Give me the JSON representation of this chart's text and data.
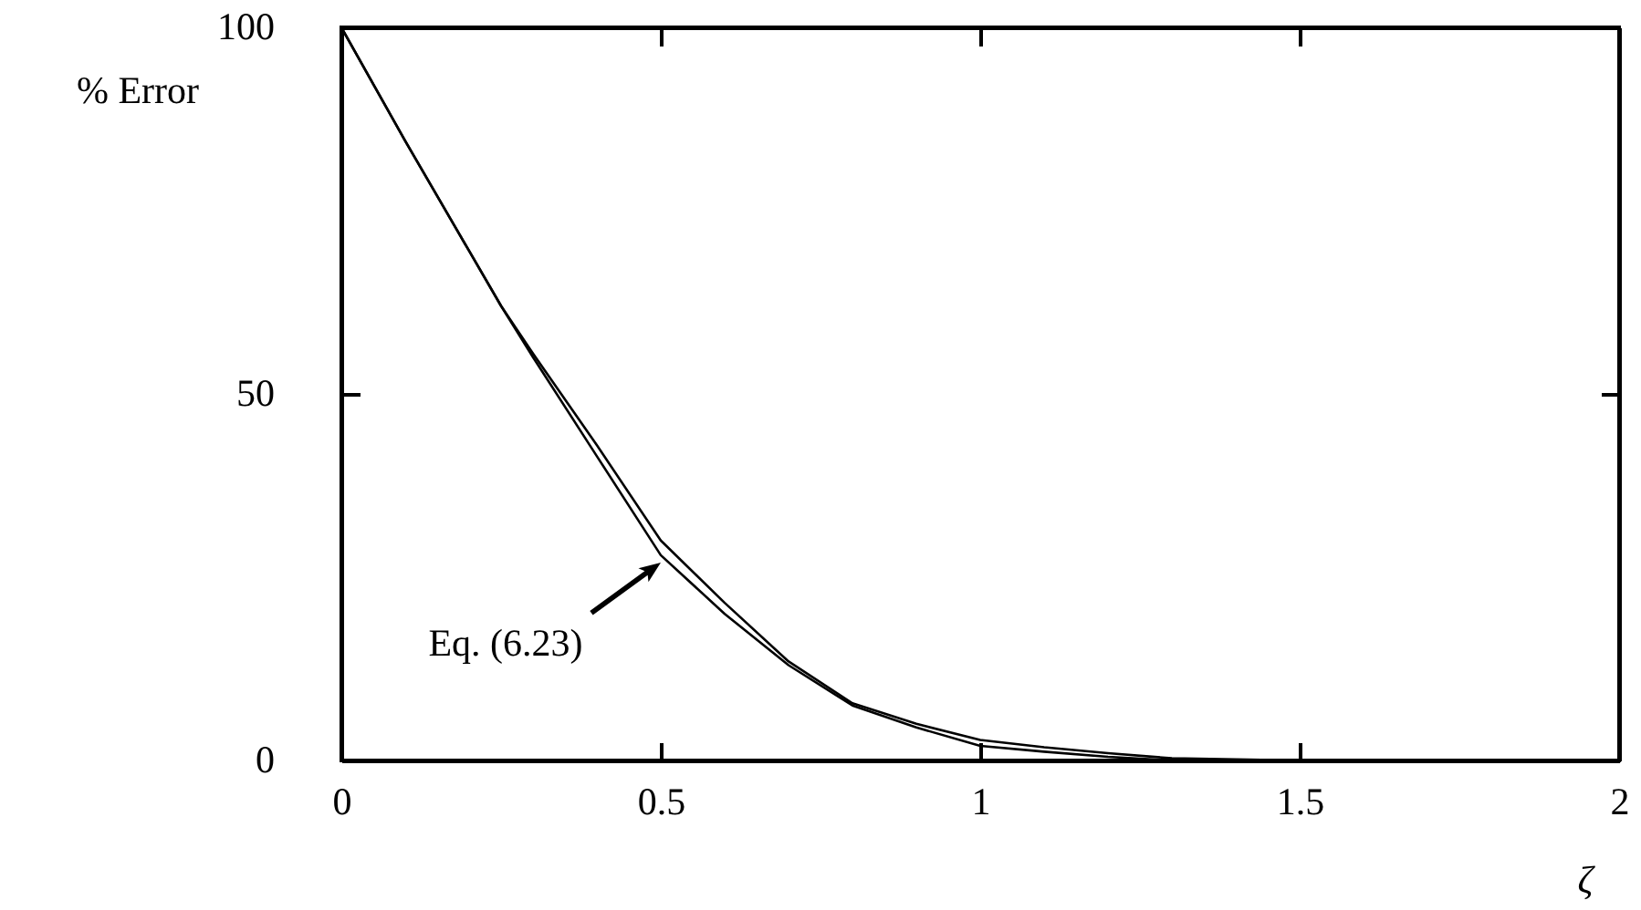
{
  "chart_data": {
    "type": "line",
    "xlabel": "ζ",
    "ylabel": "% Error",
    "x": [
      0,
      0.1,
      0.2,
      0.25,
      0.3,
      0.4,
      0.5,
      0.6,
      0.7,
      0.8,
      0.9,
      1.0,
      1.1,
      1.2,
      1.3,
      1.5,
      1.75,
      2.0
    ],
    "series": [
      {
        "color": "#000000",
        "values": [
          100,
          84.5,
          69.5,
          62,
          55,
          41.5,
          28,
          20,
          13,
          7.5,
          4.5,
          2,
          1.2,
          0.5,
          0,
          0,
          0,
          0
        ]
      },
      {
        "color": "#000000",
        "x": [
          0,
          0.1,
          0.2,
          0.25,
          0.3,
          0.4,
          0.5,
          0.6,
          0.7,
          0.8,
          0.9,
          1.0,
          1.1,
          1.2,
          1.3,
          1.5
        ],
        "values": [
          100,
          84.5,
          69.5,
          62,
          55.5,
          43,
          30,
          21.5,
          13.5,
          7.8,
          5,
          2.8,
          1.8,
          1,
          0.3,
          0
        ]
      }
    ],
    "xlim": [
      0,
      2
    ],
    "ylim": [
      0,
      100
    ],
    "xticks": [
      0,
      0.5,
      1,
      1.5,
      2
    ],
    "yticks": [
      0,
      50,
      100
    ],
    "annotations": [
      {
        "text": "Eq. (6.23)",
        "x": 0.5,
        "y": 27
      }
    ]
  }
}
